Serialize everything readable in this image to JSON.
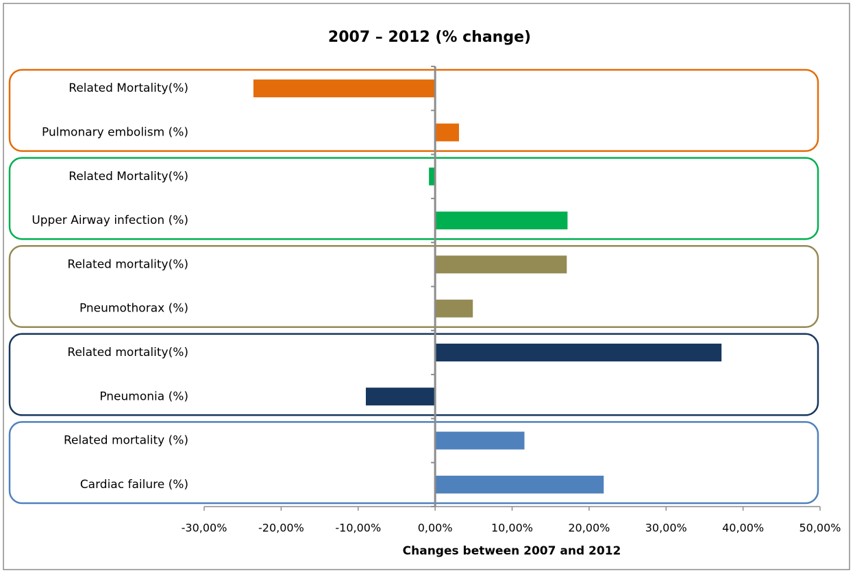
{
  "chart_data": {
    "type": "bar",
    "orientation": "horizontal",
    "title": "2007 – 2012 (% change)",
    "x_label": "Changes between 2007 and 2012",
    "categories": [
      "Related Mortality(%)",
      "Pulmonary embolism (%)",
      "Related Mortality(%)",
      "Upper Airway infection (%)",
      "Related mortality(%)",
      "Pneumothorax (%)",
      "Related mortality(%)",
      "Pneumonia (%)",
      "Related mortality (%)",
      "Cardiac failure (%)"
    ],
    "values": [
      -23.6,
      3.1,
      -0.8,
      17.2,
      17.1,
      4.9,
      37.2,
      -9.0,
      11.6,
      21.9
    ],
    "colors": [
      "#e46c0a",
      "#e46c0a",
      "#00b050",
      "#00b050",
      "#948a54",
      "#948a54",
      "#17375e",
      "#17375e",
      "#4f81bd",
      "#4f81bd"
    ],
    "xlim": [
      -30,
      50
    ],
    "xticks": [
      {
        "value": -30,
        "label": "-30,00%"
      },
      {
        "value": -20,
        "label": "-20,00%"
      },
      {
        "value": -10,
        "label": "-10,00%"
      },
      {
        "value": 0,
        "label": "0,00%"
      },
      {
        "value": 10,
        "label": "10,00%"
      },
      {
        "value": 20,
        "label": "20,00%"
      },
      {
        "value": 30,
        "label": "30,00%"
      },
      {
        "value": 40,
        "label": "40,00%"
      },
      {
        "value": 50,
        "label": "50,00%"
      }
    ],
    "grid": false
  }
}
